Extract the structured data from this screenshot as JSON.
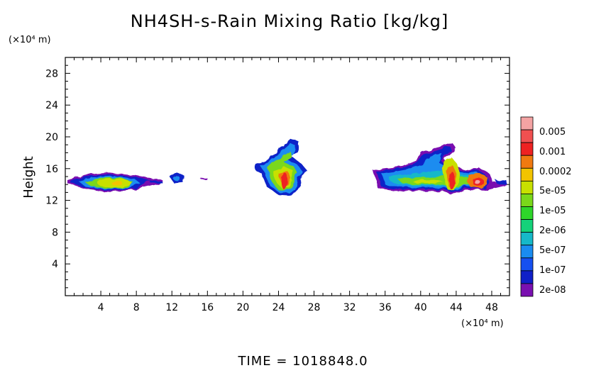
{
  "chart_data": {
    "type": "heatmap",
    "title": "NH4SH-s-Rain Mixing Ratio [kg/kg]",
    "ylabel": "Height",
    "y_unit": "(×10⁴ m)",
    "x_unit": "(×10⁴ m)",
    "xlim": [
      0,
      50
    ],
    "ylim": [
      0,
      30
    ],
    "x_ticks": [
      4,
      8,
      12,
      16,
      20,
      24,
      28,
      32,
      36,
      40,
      44,
      48
    ],
    "y_ticks": [
      4,
      8,
      12,
      16,
      20,
      24,
      28
    ],
    "colorbar": {
      "labels": [
        "0.005",
        "0.001",
        "0.0002",
        "5e-05",
        "1e-05",
        "2e-06",
        "5e-07",
        "1e-07",
        "2e-08"
      ],
      "colors": [
        "#f4a3a3",
        "#f05050",
        "#ee2222",
        "#f07a10",
        "#f2c400",
        "#c8e000",
        "#7ad81a",
        "#2ed62a",
        "#14d27a",
        "#16b8c8",
        "#1a8cf0",
        "#1650f0",
        "#1020c8",
        "#7a10b0"
      ]
    },
    "regions": [
      {
        "x": [
          0.3,
          13.2
        ],
        "y": [
          13.2,
          15.0
        ],
        "peak": "5e-05"
      },
      {
        "x": [
          21.6,
          26.6
        ],
        "y": [
          12.6,
          19.8
        ],
        "peak": "0.001"
      },
      {
        "x": [
          34.6,
          49.7
        ],
        "y": [
          12.6,
          19.2
        ],
        "peak": "0.005"
      }
    ],
    "footer": "TIME = 1018848.0"
  }
}
